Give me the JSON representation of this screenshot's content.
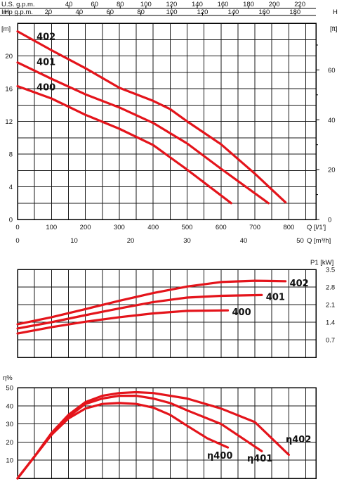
{
  "chart_data": [
    {
      "type": "line",
      "xlabel": "Q [l/1']",
      "ylabel_left": "H [m]",
      "ylabel_right": "H [ft]",
      "xlim": [
        0,
        850
      ],
      "ylim": [
        0,
        24
      ],
      "x_ticks": [
        0,
        100,
        200,
        300,
        400,
        500,
        600,
        700,
        800
      ],
      "y_ticks": [
        0,
        4,
        8,
        12,
        16,
        20
      ],
      "right_ticks": [
        0,
        20,
        40,
        60
      ],
      "top_axis_us": {
        "label": "U.S. g.p.m.",
        "ticks": [
          40,
          60,
          80,
          100,
          120,
          140,
          160,
          180,
          200,
          220
        ]
      },
      "top_axis_imp": {
        "label": "Imp g.p.m.",
        "ticks": [
          20,
          40,
          60,
          80,
          100,
          120,
          140,
          160,
          180
        ]
      },
      "bottom_axis_m3h": {
        "label": "Q [m³/h]",
        "ticks": [
          0,
          10,
          20,
          30,
          40,
          50
        ]
      },
      "series": [
        {
          "name": "402",
          "label_pos": [
            85,
            22.4
          ],
          "points": [
            [
              0,
              23.0
            ],
            [
              100,
              20.7
            ],
            [
              200,
              18.5
            ],
            [
              300,
              16.1
            ],
            [
              400,
              14.5
            ],
            [
              450,
              13.5
            ],
            [
              500,
              12.0
            ],
            [
              600,
              9.2
            ],
            [
              700,
              5.6
            ],
            [
              790,
              2.1
            ]
          ]
        },
        {
          "name": "401",
          "label_pos": [
            85,
            19.3
          ],
          "points": [
            [
              0,
              19.2
            ],
            [
              100,
              17.2
            ],
            [
              200,
              15.3
            ],
            [
              300,
              13.7
            ],
            [
              400,
              11.8
            ],
            [
              500,
              9.3
            ],
            [
              600,
              6.2
            ],
            [
              740,
              2.0
            ]
          ]
        },
        {
          "name": "400",
          "label_pos": [
            85,
            16.2
          ],
          "points": [
            [
              0,
              16.3
            ],
            [
              100,
              14.8
            ],
            [
              200,
              12.8
            ],
            [
              300,
              11.1
            ],
            [
              400,
              9.1
            ],
            [
              500,
              6.1
            ],
            [
              630,
              2.0
            ]
          ]
        }
      ]
    },
    {
      "type": "line",
      "ylabel": "P1 [kW]",
      "xlim": [
        0,
        850
      ],
      "ylim": [
        0,
        3.5
      ],
      "y_ticks": [
        0.7,
        1.4,
        2.1,
        2.8,
        3.5
      ],
      "series": [
        {
          "name": "402",
          "points": [
            [
              0,
              1.32
            ],
            [
              100,
              1.6
            ],
            [
              200,
              1.92
            ],
            [
              300,
              2.25
            ],
            [
              400,
              2.56
            ],
            [
              500,
              2.82
            ],
            [
              600,
              3.0
            ],
            [
              700,
              3.05
            ],
            [
              790,
              3.03
            ]
          ]
        },
        {
          "name": "401",
          "points": [
            [
              0,
              1.15
            ],
            [
              100,
              1.4
            ],
            [
              200,
              1.68
            ],
            [
              300,
              1.95
            ],
            [
              400,
              2.2
            ],
            [
              500,
              2.38
            ],
            [
              600,
              2.45
            ],
            [
              720,
              2.48
            ]
          ]
        },
        {
          "name": "400",
          "points": [
            [
              0,
              0.95
            ],
            [
              100,
              1.2
            ],
            [
              200,
              1.42
            ],
            [
              300,
              1.6
            ],
            [
              400,
              1.75
            ],
            [
              500,
              1.85
            ],
            [
              620,
              1.87
            ]
          ]
        }
      ]
    },
    {
      "type": "line",
      "ylabel": "η%",
      "xlim": [
        0,
        850
      ],
      "ylim": [
        0,
        50
      ],
      "y_ticks": [
        10,
        20,
        30,
        40,
        50
      ],
      "series": [
        {
          "name": "η400",
          "points": [
            [
              0,
              0
            ],
            [
              50,
              12
            ],
            [
              100,
              24
            ],
            [
              150,
              33
            ],
            [
              200,
              38.5
            ],
            [
              250,
              41
            ],
            [
              300,
              41.5
            ],
            [
              350,
              41
            ],
            [
              400,
              39
            ],
            [
              450,
              35
            ],
            [
              500,
              29
            ],
            [
              560,
              22
            ],
            [
              620,
              17
            ]
          ]
        },
        {
          "name": "η401",
          "points": [
            [
              0,
              0
            ],
            [
              50,
              12
            ],
            [
              100,
              24
            ],
            [
              150,
              34
            ],
            [
              200,
              41
            ],
            [
              250,
              44
            ],
            [
              300,
              45.5
            ],
            [
              350,
              45.5
            ],
            [
              400,
              44
            ],
            [
              450,
              41.5
            ],
            [
              500,
              37.5
            ],
            [
              600,
              30
            ],
            [
              720,
              15
            ]
          ]
        },
        {
          "name": "η402",
          "points": [
            [
              0,
              0
            ],
            [
              50,
              12
            ],
            [
              100,
              25
            ],
            [
              150,
              35
            ],
            [
              200,
              42
            ],
            [
              250,
              45.5
            ],
            [
              300,
              47
            ],
            [
              350,
              47.5
            ],
            [
              400,
              47
            ],
            [
              500,
              44
            ],
            [
              600,
              38.5
            ],
            [
              700,
              31
            ],
            [
              800,
              13
            ]
          ]
        }
      ]
    }
  ],
  "colors": {
    "curve": "#e4141b",
    "grid": "#1a1a1a"
  }
}
